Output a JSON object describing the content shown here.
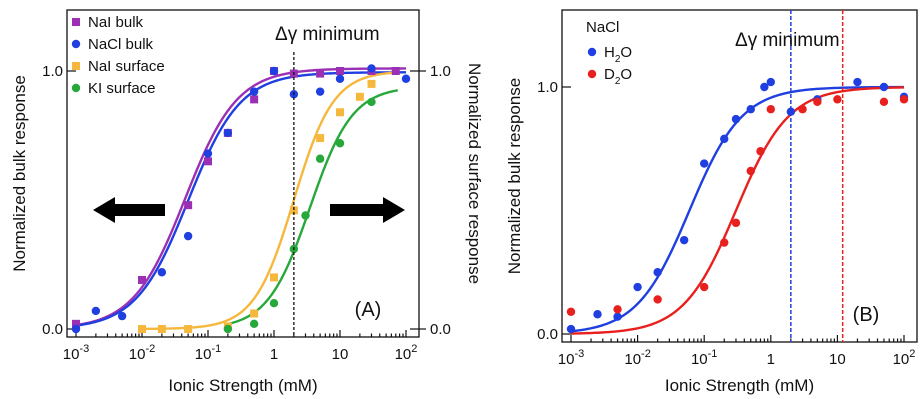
{
  "chart_data": [
    {
      "type": "scatter",
      "panel_label": "(A)",
      "xlabel": "Ionic Strength (mM)",
      "ylabel": "Normalized bulk response",
      "y2label": "Normalized surface response",
      "x_scale": "log",
      "xlim": [
        0.001,
        100
      ],
      "ylim": [
        0,
        1.12
      ],
      "x_ticks": [
        {
          "value": 0.001,
          "base": "10",
          "exp": "-3"
        },
        {
          "value": 0.01,
          "base": "10",
          "exp": "-2"
        },
        {
          "value": 0.1,
          "base": "10",
          "exp": "-1"
        },
        {
          "value": 1,
          "base": "1",
          "exp": ""
        },
        {
          "value": 10,
          "base": "10",
          "exp": ""
        },
        {
          "value": 100,
          "base": "10",
          "exp": "2"
        }
      ],
      "y_ticks": [
        {
          "value": 0,
          "label": "0.0"
        },
        {
          "value": 1,
          "label": "1.0"
        }
      ],
      "y2_ticks": [
        {
          "value": 0,
          "label": "0.0"
        },
        {
          "value": 1,
          "label": "1.0"
        }
      ],
      "annotation": {
        "text": "Δγ minimum",
        "x": 2
      },
      "legend_position": "top-left",
      "series": [
        {
          "name": "NaI bulk",
          "marker": "square",
          "color": "#9b30b5",
          "points": [
            [
              0.001,
              0.02
            ],
            [
              0.01,
              0.19
            ],
            [
              0.05,
              0.48
            ],
            [
              0.1,
              0.65
            ],
            [
              0.2,
              0.76
            ],
            [
              0.5,
              0.89
            ],
            [
              1,
              1.0
            ],
            [
              2,
              0.99
            ],
            [
              5,
              0.99
            ],
            [
              10,
              1.0
            ],
            [
              30,
              1.0
            ],
            [
              70,
              1.0
            ]
          ],
          "fit": {
            "x0": 0.045,
            "n": 1.1,
            "A": 1.01
          }
        },
        {
          "name": "NaCl bulk",
          "marker": "circle",
          "color": "#1f3fe0",
          "points": [
            [
              0.001,
              0.0
            ],
            [
              0.002,
              0.07
            ],
            [
              0.005,
              0.05
            ],
            [
              0.02,
              0.22
            ],
            [
              0.05,
              0.36
            ],
            [
              0.1,
              0.68
            ],
            [
              0.2,
              0.76
            ],
            [
              0.5,
              0.92
            ],
            [
              1,
              1.0
            ],
            [
              2,
              0.91
            ],
            [
              5,
              0.92
            ],
            [
              10,
              0.97
            ],
            [
              30,
              1.01
            ],
            [
              100,
              0.97
            ]
          ],
          "fit": {
            "x0": 0.05,
            "n": 1.1,
            "A": 0.995
          }
        },
        {
          "name": "NaI surface",
          "marker": "square",
          "color": "#f5b83d",
          "points": [
            [
              0.01,
              0.0
            ],
            [
              0.02,
              0.0
            ],
            [
              0.05,
              0.0
            ],
            [
              0.2,
              0.01
            ],
            [
              0.5,
              0.06
            ],
            [
              1,
              0.2
            ],
            [
              2,
              0.46
            ],
            [
              5,
              0.74
            ],
            [
              10,
              0.84
            ],
            [
              20,
              0.9
            ],
            [
              30,
              0.95
            ]
          ],
          "fit": {
            "x0": 2.0,
            "n": 1.45,
            "A": 1.0
          }
        },
        {
          "name": "KI surface",
          "marker": "circle",
          "color": "#27a83a",
          "points": [
            [
              0.2,
              0.0
            ],
            [
              0.5,
              0.02
            ],
            [
              1,
              0.1
            ],
            [
              2,
              0.31
            ],
            [
              3,
              0.44
            ],
            [
              5,
              0.66
            ],
            [
              10,
              0.72
            ],
            [
              30,
              0.88
            ]
          ],
          "fit": {
            "x0": 3.5,
            "n": 1.35,
            "A": 0.94
          }
        }
      ]
    },
    {
      "type": "scatter",
      "panel_label": "(B)",
      "xlabel": "Ionic Strength (mM)",
      "ylabel": "Normalized bulk response",
      "x_scale": "log",
      "xlim": [
        0.001,
        100
      ],
      "ylim": [
        0,
        1.12
      ],
      "x_ticks": [
        {
          "value": 0.001,
          "base": "10",
          "exp": "-3"
        },
        {
          "value": 0.01,
          "base": "10",
          "exp": "-2"
        },
        {
          "value": 0.1,
          "base": "10",
          "exp": "-1"
        },
        {
          "value": 1,
          "base": "1",
          "exp": ""
        },
        {
          "value": 10,
          "base": "10",
          "exp": ""
        },
        {
          "value": 100,
          "base": "10",
          "exp": "2"
        }
      ],
      "y_ticks": [
        {
          "value": 0,
          "label": "0.0"
        },
        {
          "value": 1,
          "label": "1.0"
        }
      ],
      "annotation": {
        "text": "Δγ minimum",
        "lines": [
          {
            "x": 2,
            "color": "#1f3fe0"
          },
          {
            "x": 12,
            "color": "#e8201e"
          }
        ]
      },
      "legend_title": "NaCl",
      "legend_position": "top-left",
      "series": [
        {
          "name": "H2O",
          "name_parts": [
            "H",
            "2",
            "O"
          ],
          "marker": "circle",
          "color": "#1f3fe0",
          "points": [
            [
              0.001,
              0.02
            ],
            [
              0.0025,
              0.08
            ],
            [
              0.005,
              0.07
            ],
            [
              0.01,
              0.19
            ],
            [
              0.02,
              0.25
            ],
            [
              0.05,
              0.38
            ],
            [
              0.1,
              0.69
            ],
            [
              0.2,
              0.79
            ],
            [
              0.3,
              0.87
            ],
            [
              0.5,
              0.91
            ],
            [
              0.8,
              1.0
            ],
            [
              1,
              1.02
            ],
            [
              2,
              0.9
            ],
            [
              5,
              0.95
            ],
            [
              20,
              1.02
            ],
            [
              50,
              1.0
            ],
            [
              100,
              0.96
            ]
          ],
          "fit": {
            "x0": 0.06,
            "n": 1.1,
            "A": 1.0
          }
        },
        {
          "name": "D2O",
          "name_parts": [
            "D",
            "2",
            "O"
          ],
          "marker": "circle",
          "color": "#e8201e",
          "points": [
            [
              0.001,
              0.09
            ],
            [
              0.005,
              0.1
            ],
            [
              0.02,
              0.14
            ],
            [
              0.1,
              0.19
            ],
            [
              0.2,
              0.37
            ],
            [
              0.3,
              0.45
            ],
            [
              0.5,
              0.66
            ],
            [
              0.7,
              0.74
            ],
            [
              1,
              0.91
            ],
            [
              3,
              0.91
            ],
            [
              5,
              0.94
            ],
            [
              10,
              0.95
            ],
            [
              50,
              0.94
            ],
            [
              100,
              0.95
            ]
          ],
          "fit": {
            "x0": 0.3,
            "n": 1.1,
            "A": 1.0
          }
        }
      ]
    }
  ]
}
